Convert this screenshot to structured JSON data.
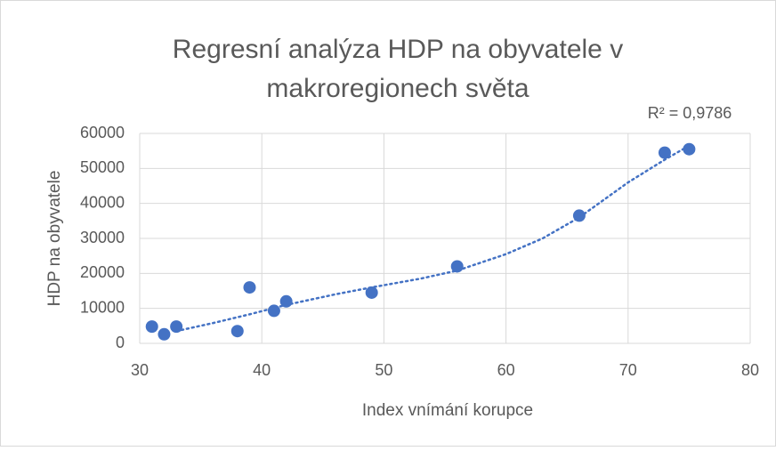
{
  "chart_data": {
    "type": "scatter",
    "title": [
      "Regresní analýza HDP na obyvatele v",
      "makroregionech světa"
    ],
    "annotation": "R² = 0,9786",
    "x_label": "Index vnímání korupce",
    "y_label": "HDP na obyvatele",
    "color": "#4472c4",
    "x": [
      31,
      32,
      33,
      38,
      39,
      41,
      42,
      49,
      56,
      66,
      73,
      75
    ],
    "values": [
      4800,
      2600,
      4800,
      3500,
      16000,
      9300,
      12000,
      14500,
      22000,
      36500,
      54500,
      55500
    ],
    "trendline": {
      "x": [
        33,
        36,
        39,
        42,
        46,
        49,
        53,
        56,
        60,
        63,
        66,
        70,
        73,
        75
      ],
      "values": [
        3500,
        5800,
        8300,
        11000,
        14000,
        16000,
        18500,
        20800,
        25500,
        30000,
        36000,
        46000,
        52500,
        56500
      ]
    },
    "xlim": [
      30,
      80
    ],
    "xticks": [
      30,
      40,
      50,
      60,
      70,
      80
    ],
    "ylim": [
      0,
      60000
    ],
    "yticks": [
      0,
      10000,
      20000,
      30000,
      40000,
      50000,
      60000
    ],
    "grid": true
  }
}
